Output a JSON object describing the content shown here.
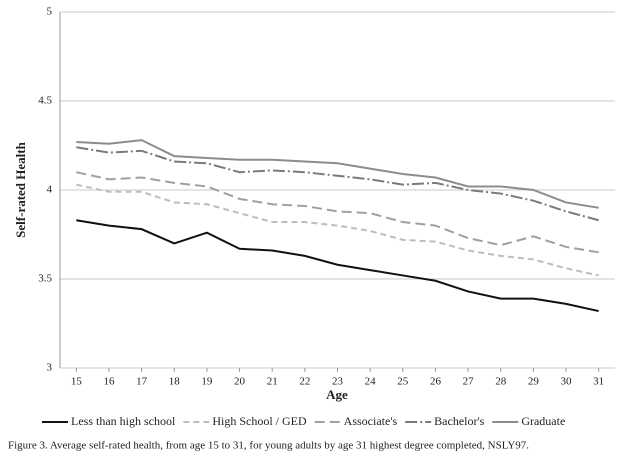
{
  "chart_data": {
    "type": "line",
    "y_label": "Self-rated Health",
    "x_label": "Age",
    "caption": "Figure 3. Average self-rated health, from age 15 to 31, for young adults by age 31 highest degree completed, NSLY97.",
    "x": [
      15,
      16,
      17,
      18,
      19,
      20,
      21,
      22,
      23,
      24,
      25,
      26,
      27,
      28,
      29,
      30,
      31
    ],
    "xlim": [
      14.5,
      31.5
    ],
    "xticks": [
      15,
      16,
      17,
      18,
      19,
      20,
      21,
      22,
      23,
      24,
      25,
      26,
      27,
      28,
      29,
      30,
      31
    ],
    "ylim": [
      3,
      5
    ],
    "yticks": [
      3,
      3.5,
      4,
      4.5,
      5
    ],
    "grid": true,
    "legend": "bottom",
    "series": [
      {
        "name": "Less than high school",
        "color": "#111111",
        "dash": "none",
        "values": [
          3.83,
          3.8,
          3.78,
          3.7,
          3.76,
          3.67,
          3.66,
          3.63,
          3.58,
          3.55,
          3.52,
          3.49,
          3.43,
          3.39,
          3.39,
          3.36,
          3.32
        ]
      },
      {
        "name": "High School / GED",
        "color": "#bdbdbd",
        "dash": "6,4",
        "values": [
          4.03,
          3.99,
          3.99,
          3.93,
          3.92,
          3.87,
          3.82,
          3.82,
          3.8,
          3.77,
          3.72,
          3.71,
          3.66,
          3.63,
          3.61,
          3.56,
          3.52
        ]
      },
      {
        "name": "Associate's",
        "color": "#a0a0a0",
        "dash": "10,5",
        "values": [
          4.1,
          4.06,
          4.07,
          4.04,
          4.02,
          3.95,
          3.92,
          3.91,
          3.88,
          3.87,
          3.82,
          3.8,
          3.73,
          3.69,
          3.74,
          3.68,
          3.65
        ]
      },
      {
        "name": "Bachelor's",
        "color": "#7a7a7a",
        "dash": "12,3,2,3",
        "values": [
          4.24,
          4.21,
          4.22,
          4.16,
          4.15,
          4.1,
          4.11,
          4.1,
          4.08,
          4.06,
          4.03,
          4.04,
          4.0,
          3.98,
          3.94,
          3.88,
          3.83
        ]
      },
      {
        "name": "Graduate",
        "color": "#8c8c8c",
        "dash": "none",
        "values": [
          4.27,
          4.26,
          4.28,
          4.19,
          4.18,
          4.17,
          4.17,
          4.16,
          4.15,
          4.12,
          4.09,
          4.07,
          4.02,
          4.02,
          4.0,
          3.93,
          3.9
        ]
      }
    ]
  }
}
